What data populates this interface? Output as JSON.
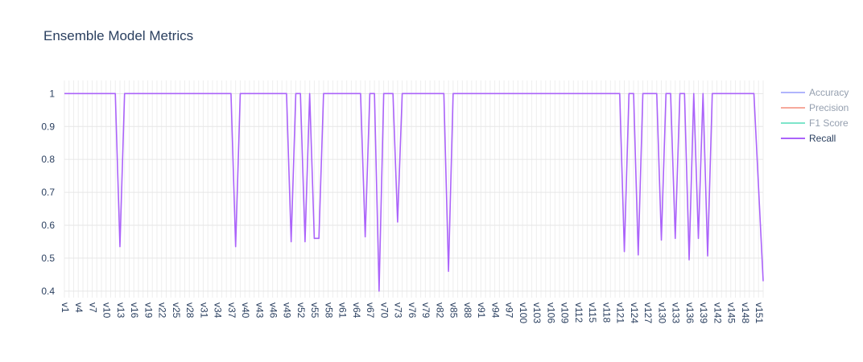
{
  "chart_data": {
    "type": "line",
    "title": "Ensemble Model Metrics",
    "xlabel": "",
    "ylabel": "",
    "ylim": [
      0.38,
      1.04
    ],
    "y_ticks": [
      0.4,
      0.5,
      0.6,
      0.7,
      0.8,
      0.9,
      1
    ],
    "y_tick_labels": [
      "0.4",
      "0.5",
      "0.6",
      "0.7",
      "0.8",
      "0.9",
      "1"
    ],
    "grid": true,
    "legend_position": "right",
    "x_tick_labels": [
      "v1",
      "v4",
      "v7",
      "v10",
      "v13",
      "v16",
      "v19",
      "v22",
      "v25",
      "v28",
      "v31",
      "v34",
      "v37",
      "v40",
      "v43",
      "v46",
      "v49",
      "v52",
      "v55",
      "v58",
      "v61",
      "v64",
      "v67",
      "v70",
      "v73",
      "v76",
      "v79",
      "v82",
      "v85",
      "v88",
      "v91",
      "v94",
      "v97",
      "v100",
      "v103",
      "v106",
      "v109",
      "v112",
      "v115",
      "v118",
      "v121",
      "v124",
      "v127",
      "v130",
      "v133",
      "v136",
      "v139",
      "v142",
      "v145",
      "v148",
      "v151"
    ],
    "x_count": 152,
    "series": [
      {
        "name": "Accuracy",
        "color": "#636efa",
        "visible": false
      },
      {
        "name": "Precision",
        "color": "#ef553b",
        "visible": false
      },
      {
        "name": "F1 Score",
        "color": "#00cc96",
        "visible": false
      },
      {
        "name": "Recall",
        "color": "#ab63fa",
        "visible": true,
        "points": [
          [
            1,
            1
          ],
          [
            12,
            1
          ],
          [
            13,
            0.535
          ],
          [
            14,
            1
          ],
          [
            37,
            1
          ],
          [
            38,
            0.535
          ],
          [
            39,
            1
          ],
          [
            49,
            1
          ],
          [
            50,
            0.55
          ],
          [
            51,
            1
          ],
          [
            52,
            1
          ],
          [
            53,
            0.55
          ],
          [
            54,
            1
          ],
          [
            55,
            0.56
          ],
          [
            56,
            0.56
          ],
          [
            57,
            1
          ],
          [
            65,
            1
          ],
          [
            66,
            0.565
          ],
          [
            67,
            1
          ],
          [
            68,
            1
          ],
          [
            69,
            0.4
          ],
          [
            70,
            1
          ],
          [
            72,
            1
          ],
          [
            73,
            0.61
          ],
          [
            74,
            1
          ],
          [
            83,
            1
          ],
          [
            84,
            0.46
          ],
          [
            85,
            1
          ],
          [
            121,
            1
          ],
          [
            122,
            0.52
          ],
          [
            123,
            1
          ],
          [
            124,
            1
          ],
          [
            125,
            0.51
          ],
          [
            126,
            1
          ],
          [
            129,
            1
          ],
          [
            130,
            0.555
          ],
          [
            131,
            1
          ],
          [
            132,
            1
          ],
          [
            133,
            0.56
          ],
          [
            134,
            1
          ],
          [
            135,
            1
          ],
          [
            136,
            0.495
          ],
          [
            137,
            1
          ],
          [
            138,
            0.56
          ],
          [
            139,
            1
          ],
          [
            140,
            0.507
          ],
          [
            141,
            1
          ],
          [
            150,
            1
          ],
          [
            152,
            0.43
          ]
        ]
      }
    ]
  }
}
